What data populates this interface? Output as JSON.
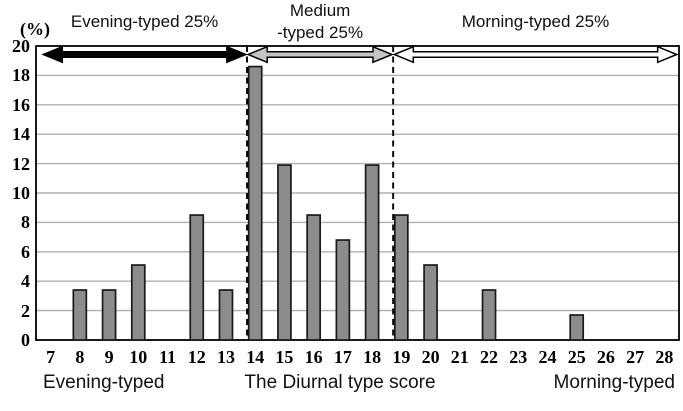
{
  "figure": {
    "y_axis_unit_label": "(%)",
    "bottom_left_label": "Evening-typed",
    "bottom_center_label": "The Diurnal type score",
    "bottom_right_label": "Morning-typed"
  },
  "chart_data": {
    "type": "bar",
    "title": "",
    "xlabel": "The Diurnal type score",
    "ylabel": "(%)",
    "categories": [
      7,
      8,
      9,
      10,
      11,
      12,
      13,
      14,
      15,
      16,
      17,
      18,
      19,
      20,
      21,
      22,
      23,
      24,
      25,
      26,
      27,
      28
    ],
    "values": [
      0,
      3.4,
      3.4,
      5.1,
      0,
      8.5,
      3.4,
      18.6,
      11.9,
      8.5,
      6.8,
      11.9,
      8.5,
      5.1,
      0,
      3.4,
      0,
      0,
      1.7,
      0,
      0,
      0
    ],
    "ylim": [
      0,
      20
    ],
    "ytick_step": 2,
    "grid": "horizontal",
    "legend": "none",
    "bar_fill_color": "#8c8c8c",
    "bar_border_color": "#1a1a1a",
    "gridline_color": "#b0b0b0",
    "dashed_lines_at": [
      13.72,
      18.72
    ],
    "regions": [
      {
        "label_lines": [
          "Evening-typed 25%"
        ],
        "from": 6.75,
        "to": 13.68,
        "arrow_fill": "#000000",
        "arrow_stroke": "#000000",
        "name": "evening"
      },
      {
        "label_lines": [
          "Medium",
          "-typed 25%"
        ],
        "from": 13.76,
        "to": 18.68,
        "arrow_fill": "#c4c4c4",
        "arrow_stroke": "#000000",
        "name": "medium"
      },
      {
        "label_lines": [
          "Morning-typed 25%"
        ],
        "from": 18.76,
        "to": 28.42,
        "arrow_fill": "#ffffff",
        "arrow_stroke": "#000000",
        "name": "morning"
      }
    ]
  }
}
